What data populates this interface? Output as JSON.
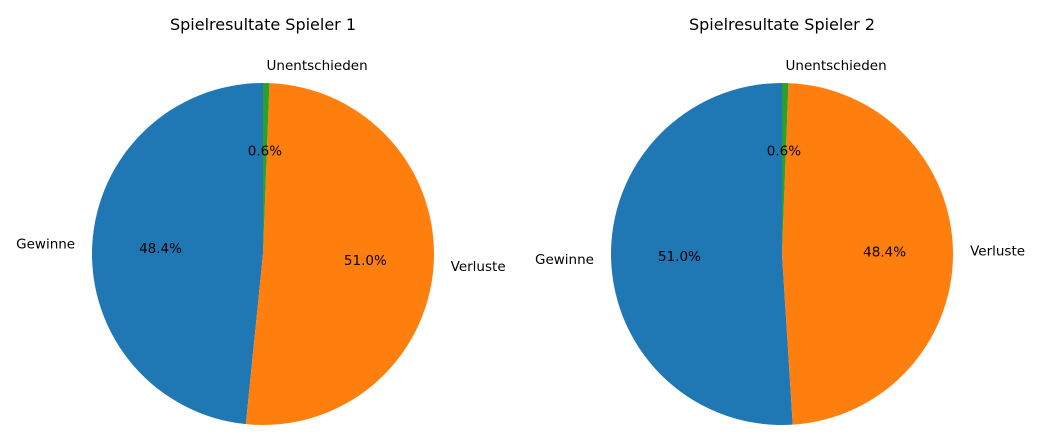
{
  "chart_data": [
    {
      "type": "pie",
      "title": "Spielresultate Spieler 1",
      "labels": [
        "Gewinne",
        "Verluste",
        "Unentschieden"
      ],
      "values": [
        48.4,
        51.0,
        0.6
      ],
      "pct_labels": [
        "48.4%",
        "51.0%",
        "0.6%"
      ],
      "colors": [
        "#1f77b4",
        "#ff7f0e",
        "#2ca02c"
      ],
      "start_angle_deg": 90,
      "direction": "counterclockwise",
      "legend": "none"
    },
    {
      "type": "pie",
      "title": "Spielresultate Spieler 2",
      "labels": [
        "Gewinne",
        "Verluste",
        "Unentschieden"
      ],
      "values": [
        51.0,
        48.4,
        0.6
      ],
      "pct_labels": [
        "51.0%",
        "48.4%",
        "0.6%"
      ],
      "colors": [
        "#1f77b4",
        "#ff7f0e",
        "#2ca02c"
      ],
      "start_angle_deg": 90,
      "direction": "counterclockwise",
      "legend": "none"
    }
  ]
}
